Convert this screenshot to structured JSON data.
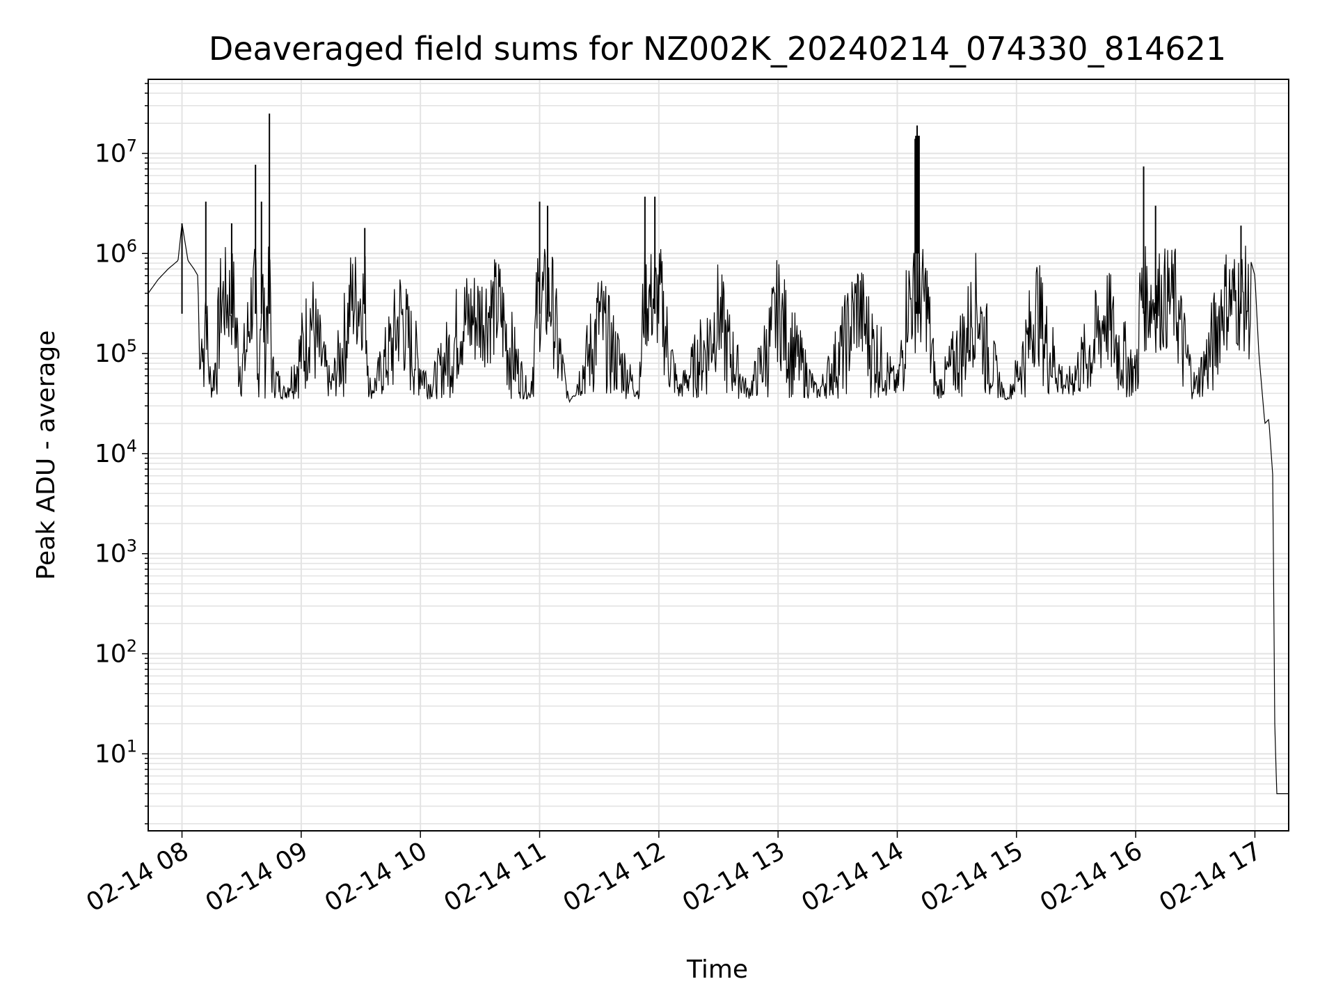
{
  "chart_data": {
    "type": "line",
    "title": "Deaveraged field sums for NZ002K_20240214_074330_814621",
    "xlabel": "Time",
    "ylabel": "Peak ADU - average",
    "yscale": "log",
    "grid": true,
    "grid_minor": true,
    "line_color": "#000000",
    "grid_color": "#e3e3e3",
    "xlim": [
      "02-14 07:43",
      "02-14 17:17"
    ],
    "ylim": [
      1.7,
      55000000
    ],
    "x_ticks": [
      "02-14 08",
      "02-14 09",
      "02-14 10",
      "02-14 11",
      "02-14 12",
      "02-14 13",
      "02-14 14",
      "02-14 15",
      "02-14 16",
      "02-14 17"
    ],
    "y_ticks": [
      {
        "base": "10",
        "exp": "1",
        "value": 10
      },
      {
        "base": "10",
        "exp": "2",
        "value": 100
      },
      {
        "base": "10",
        "exp": "3",
        "value": 1000
      },
      {
        "base": "10",
        "exp": "4",
        "value": 10000
      },
      {
        "base": "10",
        "exp": "5",
        "value": 100000
      },
      {
        "base": "10",
        "exp": "6",
        "value": 1000000
      },
      {
        "base": "10",
        "exp": "7",
        "value": 10000000
      }
    ],
    "series": [
      {
        "points": [
          [
            "02-14 07:43",
            400000
          ],
          [
            "02-14 07:48",
            550000
          ],
          [
            "02-14 07:53",
            700000
          ],
          [
            "02-14 07:58",
            850000
          ],
          [
            "02-14 08:00",
            2000000
          ],
          [
            "02-14 08:03",
            850000
          ],
          [
            "02-14 08:06",
            700000
          ],
          [
            "02-14 08:08",
            600000
          ],
          [
            "02-14 08:09",
            55000
          ],
          [
            "02-14 08:11",
            400000
          ],
          [
            "02-14 08:12",
            3300000
          ],
          [
            "02-14 08:13",
            200000
          ],
          [
            "02-14 08:15",
            52000
          ],
          [
            "02-14 08:20",
            1500000
          ],
          [
            "02-14 08:25",
            2000000
          ],
          [
            "02-14 08:30",
            120000
          ],
          [
            "02-14 08:35",
            1200000
          ],
          [
            "02-14 08:37",
            7700000
          ],
          [
            "02-14 08:38",
            55000
          ],
          [
            "02-14 08:40",
            3300000
          ],
          [
            "02-14 08:42",
            250000
          ],
          [
            "02-14 08:44",
            25000000
          ],
          [
            "02-14 08:45",
            120000
          ],
          [
            "02-14 08:52",
            45000
          ],
          [
            "02-14 09:05",
            850000
          ],
          [
            "02-14 09:15",
            60000
          ],
          [
            "02-14 09:25",
            1200000
          ],
          [
            "02-14 09:32",
            1800000
          ],
          [
            "02-14 09:35",
            45000
          ],
          [
            "02-14 09:50",
            900000
          ],
          [
            "02-14 10:05",
            60000
          ],
          [
            "02-14 10:20",
            700000
          ],
          [
            "02-14 10:40",
            1000000
          ],
          [
            "02-14 10:55",
            40000
          ],
          [
            "02-14 11:00",
            3300000
          ],
          [
            "02-14 11:04",
            3000000
          ],
          [
            "02-14 11:15",
            30000
          ],
          [
            "02-14 11:30",
            800000
          ],
          [
            "02-14 11:50",
            45000
          ],
          [
            "02-14 11:53",
            3700000
          ],
          [
            "02-14 11:58",
            3700000
          ],
          [
            "02-14 12:10",
            50000
          ],
          [
            "02-14 12:30",
            900000
          ],
          [
            "02-14 12:45",
            45000
          ],
          [
            "02-14 13:00",
            1000000
          ],
          [
            "02-14 13:20",
            45000
          ],
          [
            "02-14 13:40",
            1100000
          ],
          [
            "02-14 14:00",
            60000
          ],
          [
            "02-14 14:09",
            14000000
          ],
          [
            "02-14 14:10",
            19000000
          ],
          [
            "02-14 14:11",
            15000000
          ],
          [
            "02-14 14:20",
            50000
          ],
          [
            "02-14 14:40",
            1150000
          ],
          [
            "02-14 14:55",
            32000
          ],
          [
            "02-14 15:10",
            1100000
          ],
          [
            "02-14 15:25",
            60000
          ],
          [
            "02-14 15:45",
            900000
          ],
          [
            "02-14 16:00",
            100000
          ],
          [
            "02-14 16:04",
            7400000
          ],
          [
            "02-14 16:10",
            3000000
          ],
          [
            "02-14 16:20",
            1200000
          ],
          [
            "02-14 16:30",
            60000
          ],
          [
            "02-14 16:45",
            1500000
          ],
          [
            "02-14 16:53",
            1900000
          ],
          [
            "02-14 17:00",
            600000
          ],
          [
            "02-14 17:02",
            100000
          ],
          [
            "02-14 17:05",
            20000
          ],
          [
            "02-14 17:07",
            22000
          ],
          [
            "02-14 17:09",
            6000
          ],
          [
            "02-14 17:10",
            20
          ],
          [
            "02-14 17:11",
            4
          ],
          [
            "02-14 17:17",
            4
          ]
        ]
      }
    ]
  }
}
